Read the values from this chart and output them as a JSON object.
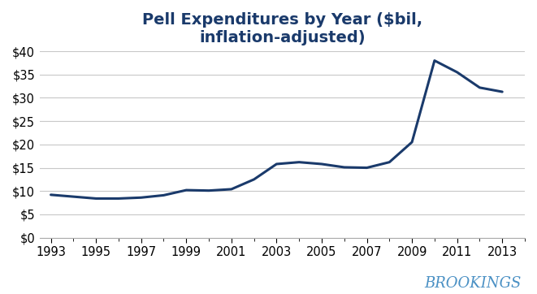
{
  "title": "Pell Expenditures by Year ($bil,\ninflation-adjusted)",
  "title_color": "#1a3a6b",
  "line_color": "#1a3a6b",
  "background_color": "#ffffff",
  "grid_color": "#c8c8c8",
  "brookings_color": "#4a90c4",
  "years": [
    1993,
    1994,
    1995,
    1996,
    1997,
    1998,
    1999,
    2000,
    2001,
    2002,
    2003,
    2004,
    2005,
    2006,
    2007,
    2008,
    2009,
    2010,
    2011,
    2012,
    2013
  ],
  "values": [
    9.2,
    8.8,
    8.4,
    8.4,
    8.6,
    9.1,
    10.2,
    10.1,
    10.4,
    12.5,
    15.8,
    16.2,
    15.8,
    15.1,
    15.0,
    16.2,
    20.5,
    38.0,
    35.5,
    32.2,
    31.3
  ],
  "ylim": [
    0,
    40
  ],
  "yticks": [
    0,
    5,
    10,
    15,
    20,
    25,
    30,
    35,
    40
  ],
  "xticks": [
    1993,
    1995,
    1997,
    1999,
    2001,
    2003,
    2005,
    2007,
    2009,
    2011,
    2013
  ],
  "xlim_left": 1992.5,
  "xlim_right": 2014.0,
  "line_width": 2.2,
  "title_fontsize": 14,
  "tick_fontsize": 10.5
}
